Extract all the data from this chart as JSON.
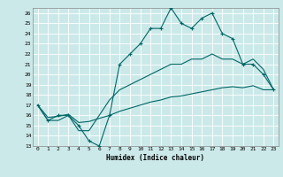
{
  "xlabel": "Humidex (Indice chaleur)",
  "bg_color": "#cce9e9",
  "grid_color": "#aad4d4",
  "line_color": "#006666",
  "xlim": [
    -0.5,
    23.5
  ],
  "ylim": [
    13,
    26.5
  ],
  "yticks": [
    13,
    14,
    15,
    16,
    17,
    18,
    19,
    20,
    21,
    22,
    23,
    24,
    25,
    26
  ],
  "xticks": [
    0,
    1,
    2,
    3,
    4,
    5,
    6,
    7,
    8,
    9,
    10,
    11,
    12,
    13,
    14,
    15,
    16,
    17,
    18,
    19,
    20,
    21,
    22,
    23
  ],
  "main_y": [
    17.0,
    15.5,
    16.0,
    16.0,
    15.0,
    13.5,
    13.0,
    16.0,
    21.0,
    22.0,
    23.0,
    24.5,
    24.5,
    26.5,
    25.0,
    24.5,
    25.5,
    26.0,
    24.0,
    23.5,
    21.0,
    21.0,
    20.0,
    18.5
  ],
  "line2_y": [
    17.0,
    15.5,
    15.5,
    16.0,
    14.5,
    14.5,
    16.0,
    17.5,
    18.5,
    19.0,
    19.5,
    20.0,
    20.5,
    21.0,
    21.0,
    21.5,
    21.5,
    22.0,
    21.5,
    21.5,
    21.0,
    21.5,
    20.5,
    18.5
  ],
  "line3_y": [
    17.0,
    15.8,
    15.9,
    16.1,
    15.3,
    15.4,
    15.7,
    16.0,
    16.4,
    16.7,
    17.0,
    17.3,
    17.5,
    17.8,
    17.9,
    18.1,
    18.3,
    18.5,
    18.7,
    18.8,
    18.7,
    18.9,
    18.5,
    18.5
  ]
}
